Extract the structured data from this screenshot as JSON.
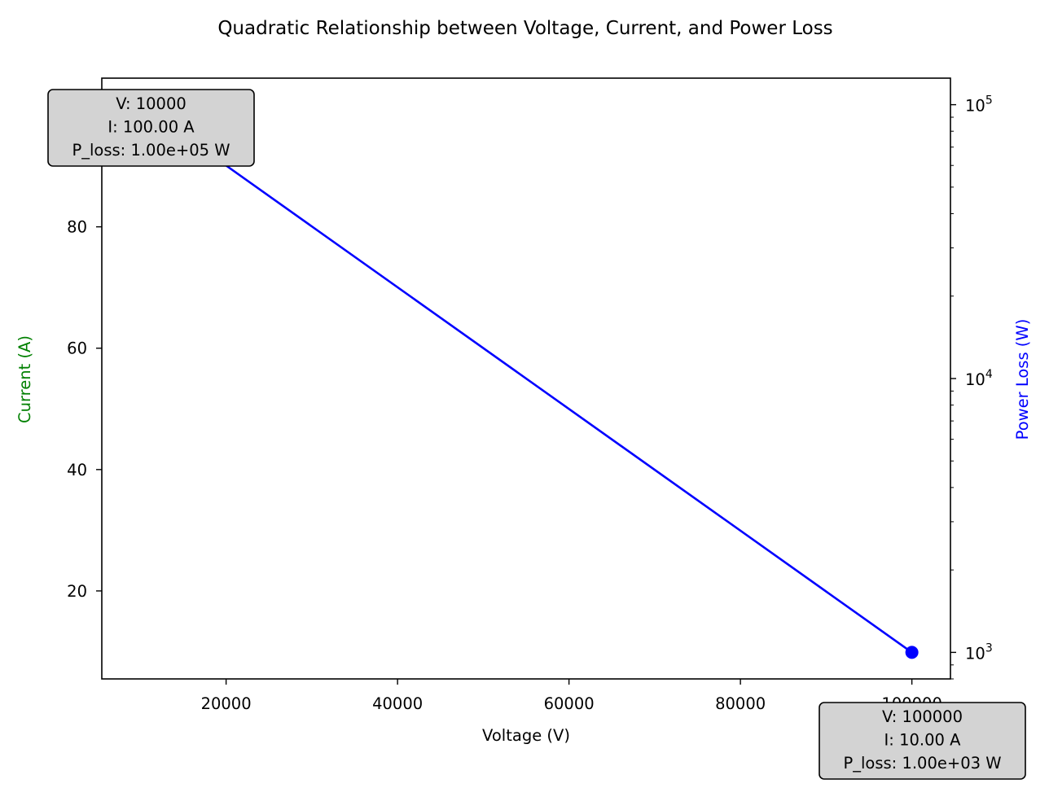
{
  "chart_data": {
    "type": "line",
    "title": "Quadratic Relationship between Voltage, Current, and Power Loss",
    "xlabel": "Voltage (V)",
    "ylabel_left": "Current (A)",
    "ylabel_right": "Power Loss (W)",
    "xlim": [
      5500,
      104500
    ],
    "ylim_left": [
      5.5,
      104.5
    ],
    "ylim_right_log": [
      800,
      125000
    ],
    "right_scale": "log",
    "grid": false,
    "x_ticks": [
      20000,
      40000,
      60000,
      80000,
      100000
    ],
    "y_left_ticks": [
      20,
      40,
      60,
      80
    ],
    "y_right_major_ticks": [
      {
        "value": 1000,
        "base": "10",
        "exp": "3"
      },
      {
        "value": 10000,
        "base": "10",
        "exp": "4"
      },
      {
        "value": 100000,
        "base": "10",
        "exp": "5"
      }
    ],
    "series": [
      {
        "axis": "right",
        "color": "#0000ff",
        "marker": "circle",
        "x": [
          10000,
          100000
        ],
        "y": [
          100000,
          1000
        ]
      }
    ],
    "annotations": [
      {
        "lines": [
          "V: 10000",
          "I: 100.00 A",
          "P_loss: 1.00e+05 W"
        ]
      },
      {
        "lines": [
          "V: 100000",
          "I: 10.00 A",
          "P_loss: 1.00e+03 W"
        ]
      }
    ],
    "colors": {
      "left_label": "#008000",
      "right_label": "#0000ff",
      "annotation_bg": "#d3d3d3"
    }
  }
}
